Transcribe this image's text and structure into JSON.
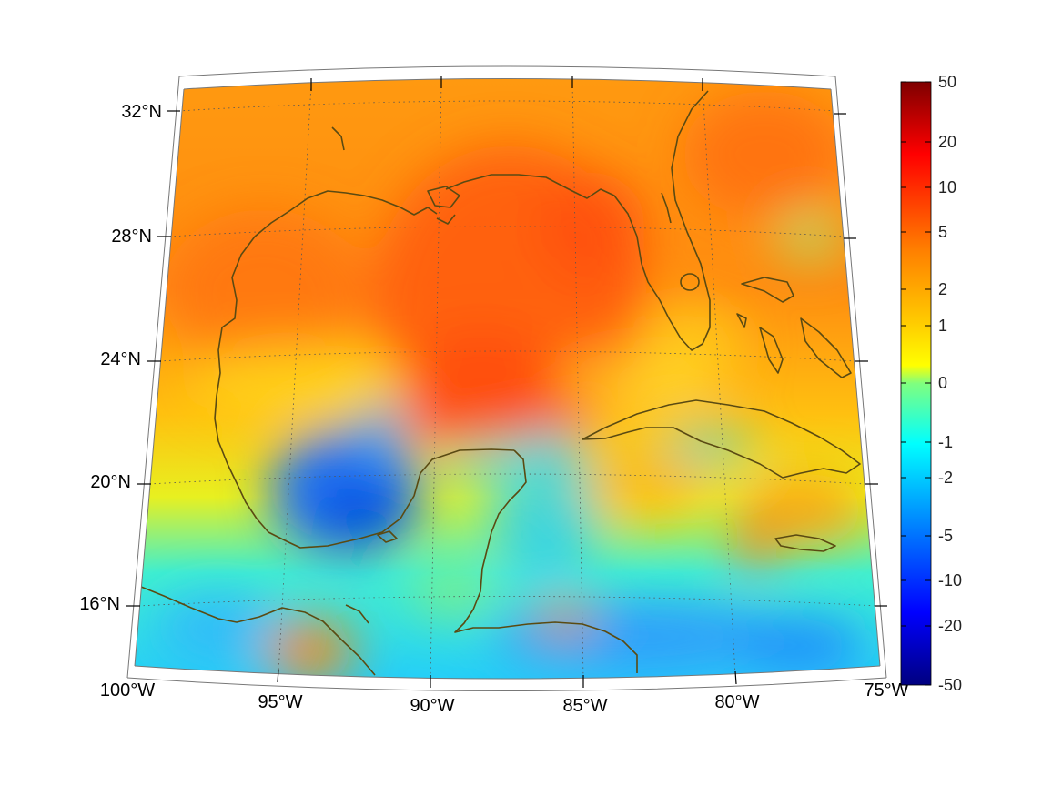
{
  "map": {
    "projection": "conic",
    "lon_range": [
      -100,
      -75
    ],
    "lat_range": [
      14,
      33
    ],
    "lon_ticks": [
      "100°W",
      "95°W",
      "90°W",
      "85°W",
      "80°W",
      "75°W"
    ],
    "lat_ticks": [
      "32°N",
      "28°N",
      "24°N",
      "20°N",
      "16°N"
    ],
    "coastline_color": "#5a4a12",
    "graticule": true
  },
  "colorbar": {
    "labels": [
      "50",
      "20",
      "10",
      "5",
      "2",
      "1",
      "0",
      "-1",
      "-2",
      "-5",
      "-10",
      "-20",
      "-50"
    ],
    "colormap": "jet",
    "colors": [
      "#7f0000",
      "#ff0000",
      "#ff7f00",
      "#ffff00",
      "#7fff7f",
      "#00ffff",
      "#007fff",
      "#0000ff",
      "#00007f"
    ]
  }
}
